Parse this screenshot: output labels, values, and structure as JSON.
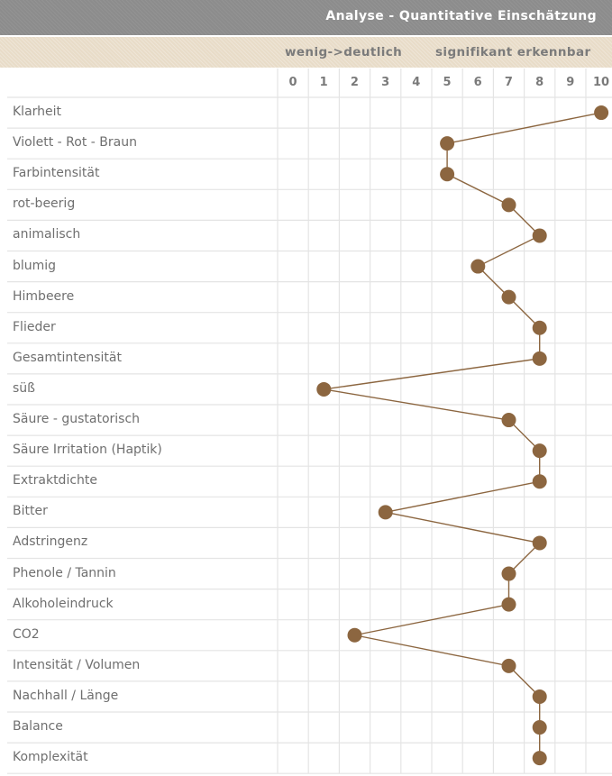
{
  "header": {
    "title": "Analyse - Quantitative Einschätzung",
    "left_scale_label": "wenig->deutlich",
    "right_scale_label": "signifikant erkennbar"
  },
  "colors": {
    "title_bar": "#8c8c8c",
    "subheader_bar": "#e8dcc8",
    "marker": "#8c6640",
    "line": "#8c6640",
    "grid": "#e4e4e4"
  },
  "chart_data": {
    "type": "line",
    "orientation": "horizontal-profile",
    "x_ticks": [
      "0",
      "1",
      "2",
      "3",
      "4",
      "5",
      "6",
      "7",
      "8",
      "9",
      "10"
    ],
    "xlim": [
      0,
      10
    ],
    "grid": true,
    "categories": [
      "Klarheit",
      "Violett - Rot - Braun",
      "Farbintensität",
      "rot-beerig",
      "animalisch",
      "blumig",
      "Himbeere",
      "Flieder",
      "Gesamtintensität",
      "süß",
      "Säure - gustatorisch",
      "Säure Irritation  (Haptik)",
      "Extraktdichte",
      "Bitter",
      "Adstringenz",
      "Phenole / Tannin",
      "Alkoholeindruck",
      "CO2",
      "Intensität / Volumen",
      "Nachhall / Länge",
      "Balance",
      "Komplexität"
    ],
    "values": [
      10,
      5,
      5,
      7,
      8,
      6,
      7,
      8,
      8,
      1,
      7,
      8,
      8,
      3,
      8,
      7,
      7,
      2,
      7,
      8,
      8,
      8
    ]
  }
}
